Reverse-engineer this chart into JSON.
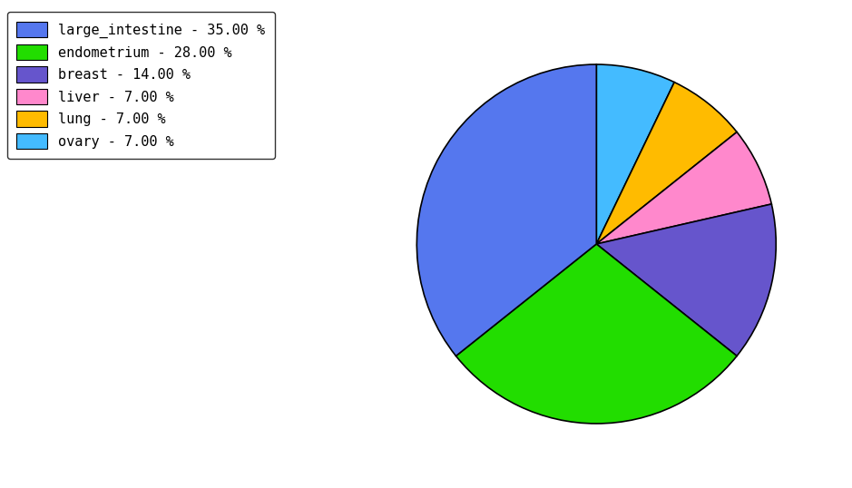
{
  "labels": [
    "large_intestine",
    "endometrium",
    "breast",
    "liver",
    "lung",
    "ovary"
  ],
  "values": [
    35.0,
    28.0,
    14.0,
    7.0,
    7.0,
    7.0
  ],
  "colors": [
    "#5577ee",
    "#22dd00",
    "#6655cc",
    "#ff88cc",
    "#ffbb00",
    "#44bbff"
  ],
  "legend_labels": [
    "large_intestine - 35.00 %",
    "endometrium - 28.00 %",
    "breast - 14.00 %",
    "liver - 7.00 %",
    "lung - 7.00 %",
    "ovary - 7.00 %"
  ],
  "plot_order": [
    "ovary",
    "lung",
    "liver",
    "breast",
    "endometrium",
    "large_intestine"
  ],
  "startangle": 90,
  "figsize": [
    9.39,
    5.38
  ],
  "dpi": 100
}
